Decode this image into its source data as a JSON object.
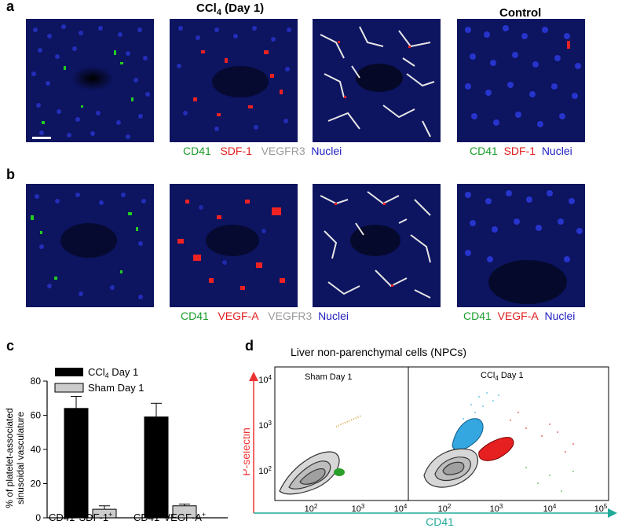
{
  "figure": {
    "panel_a": {
      "letter": "a",
      "header_ccl4_main": "CCl",
      "header_ccl4_sub": "4",
      "header_ccl4_rest": "(Day 1)",
      "header_control": "Control",
      "legend_ccl4": {
        "cd41": "CD41",
        "marker": "SDF-1",
        "vegfr3": "VEGFR3",
        "nuclei": "Nuclei"
      },
      "legend_control": {
        "cd41": "CD41",
        "marker": "SDF-1",
        "nuclei": "Nuclei"
      }
    },
    "panel_b": {
      "letter": "b",
      "legend_ccl4": {
        "cd41": "CD41",
        "marker": "VEGF-A",
        "vegfr3": "VEGFR3",
        "nuclei": "Nuclei"
      },
      "legend_control": {
        "cd41": "CD41",
        "marker": "VEGF-A",
        "nuclei": "Nuclei"
      }
    },
    "panel_c": {
      "letter": "c"
    },
    "panel_d": {
      "letter": "d",
      "title": "Liver non-parenchymal cells (NPCs)",
      "ylabel": "P-selectin",
      "xlabel": "CD41",
      "sub_sham": "Sham Day 1",
      "sub_ccl4_main": "CCl",
      "sub_ccl4_sub": "4",
      "sub_ccl4_rest": " Day 1",
      "y_ticks": [
        {
          "base": "10",
          "exp": "4"
        },
        {
          "base": "10",
          "exp": "3"
        },
        {
          "base": "10",
          "exp": "2"
        }
      ],
      "x_ticks_left": [
        {
          "base": "10",
          "exp": "2"
        },
        {
          "base": "10",
          "exp": "3"
        },
        {
          "base": "10",
          "exp": "4"
        }
      ],
      "x_ticks_right": [
        {
          "base": "10",
          "exp": "2"
        },
        {
          "base": "10",
          "exp": "3"
        },
        {
          "base": "10",
          "exp": "4"
        },
        {
          "base": "10",
          "exp": "5"
        }
      ]
    }
  },
  "chart_data": {
    "type": "bar",
    "title": "",
    "ylabel": "% of platelet-associated sinusoidal vasculature",
    "ylabel_line1": "% of platelet-associated",
    "ylabel_line2": "sinusoidal vasculature",
    "ylim": [
      0,
      80
    ],
    "yticks": [
      "0",
      "20",
      "40",
      "60",
      "80"
    ],
    "categories": [
      "CD41+SDF-1+",
      "CD41+VEGF-A+"
    ],
    "category_labels": [
      {
        "a": "CD41",
        "a_sup": "+",
        "b": "SDF-1",
        "b_sup": "+"
      },
      {
        "a": "CD41",
        "a_sup": "+",
        "b": "VEGF-A",
        "b_sup": "+"
      }
    ],
    "series": [
      {
        "name": "CCl4 Day 1",
        "name_main": "CCl",
        "name_sub": "4",
        "name_rest": " Day 1",
        "color": "#000000",
        "values": [
          64,
          59
        ],
        "errors": [
          7,
          8
        ]
      },
      {
        "name": "Sham Day 1",
        "color": "#cccccc",
        "values": [
          5,
          7
        ],
        "errors": [
          2,
          1
        ]
      }
    ]
  }
}
